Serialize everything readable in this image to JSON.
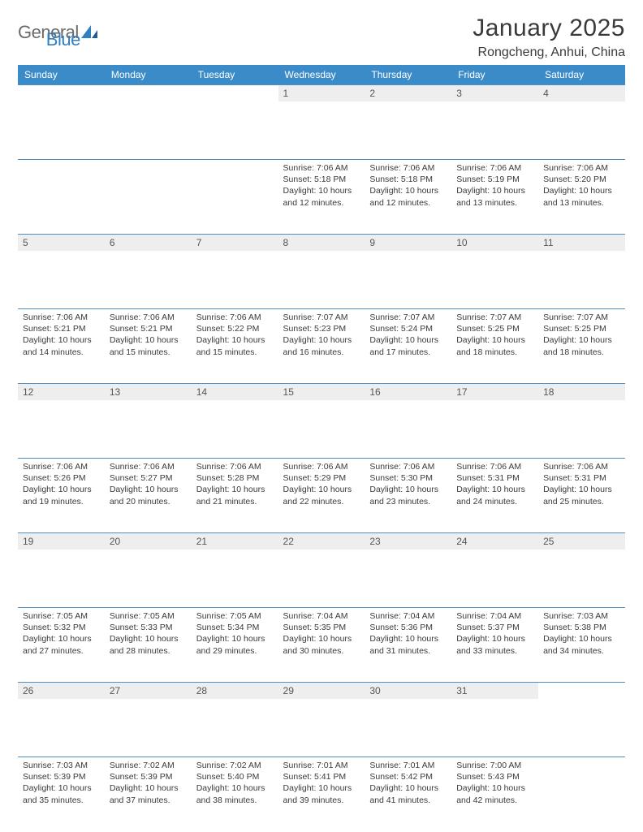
{
  "logo": {
    "general": "General",
    "blue": "Blue"
  },
  "title": "January 2025",
  "location": "Rongcheng, Anhui, China",
  "colors": {
    "header_bg": "#3b8bc9",
    "header_text": "#ffffff",
    "daynum_bg": "#eeeeee",
    "rule": "#4b8fc4",
    "logo_gray": "#6a6a6a",
    "logo_blue": "#2f7fc2",
    "text": "#3a3a3a"
  },
  "day_headers": [
    "Sunday",
    "Monday",
    "Tuesday",
    "Wednesday",
    "Thursday",
    "Friday",
    "Saturday"
  ],
  "weeks": [
    [
      {
        "n": "",
        "sr": "",
        "ss": "",
        "dl": ""
      },
      {
        "n": "",
        "sr": "",
        "ss": "",
        "dl": ""
      },
      {
        "n": "",
        "sr": "",
        "ss": "",
        "dl": ""
      },
      {
        "n": "1",
        "sr": "7:06 AM",
        "ss": "5:18 PM",
        "dl": "10 hours and 12 minutes."
      },
      {
        "n": "2",
        "sr": "7:06 AM",
        "ss": "5:18 PM",
        "dl": "10 hours and 12 minutes."
      },
      {
        "n": "3",
        "sr": "7:06 AM",
        "ss": "5:19 PM",
        "dl": "10 hours and 13 minutes."
      },
      {
        "n": "4",
        "sr": "7:06 AM",
        "ss": "5:20 PM",
        "dl": "10 hours and 13 minutes."
      }
    ],
    [
      {
        "n": "5",
        "sr": "7:06 AM",
        "ss": "5:21 PM",
        "dl": "10 hours and 14 minutes."
      },
      {
        "n": "6",
        "sr": "7:06 AM",
        "ss": "5:21 PM",
        "dl": "10 hours and 15 minutes."
      },
      {
        "n": "7",
        "sr": "7:06 AM",
        "ss": "5:22 PM",
        "dl": "10 hours and 15 minutes."
      },
      {
        "n": "8",
        "sr": "7:07 AM",
        "ss": "5:23 PM",
        "dl": "10 hours and 16 minutes."
      },
      {
        "n": "9",
        "sr": "7:07 AM",
        "ss": "5:24 PM",
        "dl": "10 hours and 17 minutes."
      },
      {
        "n": "10",
        "sr": "7:07 AM",
        "ss": "5:25 PM",
        "dl": "10 hours and 18 minutes."
      },
      {
        "n": "11",
        "sr": "7:07 AM",
        "ss": "5:25 PM",
        "dl": "10 hours and 18 minutes."
      }
    ],
    [
      {
        "n": "12",
        "sr": "7:06 AM",
        "ss": "5:26 PM",
        "dl": "10 hours and 19 minutes."
      },
      {
        "n": "13",
        "sr": "7:06 AM",
        "ss": "5:27 PM",
        "dl": "10 hours and 20 minutes."
      },
      {
        "n": "14",
        "sr": "7:06 AM",
        "ss": "5:28 PM",
        "dl": "10 hours and 21 minutes."
      },
      {
        "n": "15",
        "sr": "7:06 AM",
        "ss": "5:29 PM",
        "dl": "10 hours and 22 minutes."
      },
      {
        "n": "16",
        "sr": "7:06 AM",
        "ss": "5:30 PM",
        "dl": "10 hours and 23 minutes."
      },
      {
        "n": "17",
        "sr": "7:06 AM",
        "ss": "5:31 PM",
        "dl": "10 hours and 24 minutes."
      },
      {
        "n": "18",
        "sr": "7:06 AM",
        "ss": "5:31 PM",
        "dl": "10 hours and 25 minutes."
      }
    ],
    [
      {
        "n": "19",
        "sr": "7:05 AM",
        "ss": "5:32 PM",
        "dl": "10 hours and 27 minutes."
      },
      {
        "n": "20",
        "sr": "7:05 AM",
        "ss": "5:33 PM",
        "dl": "10 hours and 28 minutes."
      },
      {
        "n": "21",
        "sr": "7:05 AM",
        "ss": "5:34 PM",
        "dl": "10 hours and 29 minutes."
      },
      {
        "n": "22",
        "sr": "7:04 AM",
        "ss": "5:35 PM",
        "dl": "10 hours and 30 minutes."
      },
      {
        "n": "23",
        "sr": "7:04 AM",
        "ss": "5:36 PM",
        "dl": "10 hours and 31 minutes."
      },
      {
        "n": "24",
        "sr": "7:04 AM",
        "ss": "5:37 PM",
        "dl": "10 hours and 33 minutes."
      },
      {
        "n": "25",
        "sr": "7:03 AM",
        "ss": "5:38 PM",
        "dl": "10 hours and 34 minutes."
      }
    ],
    [
      {
        "n": "26",
        "sr": "7:03 AM",
        "ss": "5:39 PM",
        "dl": "10 hours and 35 minutes."
      },
      {
        "n": "27",
        "sr": "7:02 AM",
        "ss": "5:39 PM",
        "dl": "10 hours and 37 minutes."
      },
      {
        "n": "28",
        "sr": "7:02 AM",
        "ss": "5:40 PM",
        "dl": "10 hours and 38 minutes."
      },
      {
        "n": "29",
        "sr": "7:01 AM",
        "ss": "5:41 PM",
        "dl": "10 hours and 39 minutes."
      },
      {
        "n": "30",
        "sr": "7:01 AM",
        "ss": "5:42 PM",
        "dl": "10 hours and 41 minutes."
      },
      {
        "n": "31",
        "sr": "7:00 AM",
        "ss": "5:43 PM",
        "dl": "10 hours and 42 minutes."
      },
      {
        "n": "",
        "sr": "",
        "ss": "",
        "dl": ""
      }
    ]
  ],
  "labels": {
    "sunrise": "Sunrise: ",
    "sunset": "Sunset: ",
    "daylight": "Daylight: "
  }
}
